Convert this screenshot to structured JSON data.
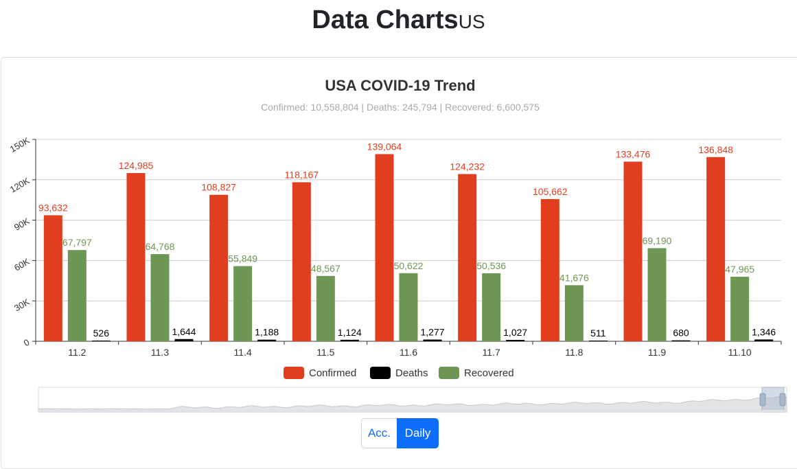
{
  "header": {
    "title": "Data Charts",
    "subtitle": "US"
  },
  "toggle": {
    "acc_label": "Acc.",
    "daily_label": "Daily",
    "active": "Daily"
  },
  "colors": {
    "confirmed": "#e03e1f",
    "deaths": "#000000",
    "recovered": "#6e9654",
    "grid": "#cccccc",
    "axis": "#333333",
    "subtitle": "#aaaaaa"
  },
  "chart_data": {
    "type": "bar",
    "title": "USA COVID-19 Trend",
    "subtitle": "Confirmed: 10,558,804 | Deaths: 245,794 | Recovered: 6,600,575",
    "categories": [
      "11.2",
      "11.3",
      "11.4",
      "11.5",
      "11.6",
      "11.7",
      "11.8",
      "11.9",
      "11.10"
    ],
    "series": [
      {
        "name": "Confirmed",
        "color": "#e03e1f",
        "values": [
          93632,
          124985,
          108827,
          118167,
          139064,
          124232,
          105662,
          133476,
          136848
        ],
        "labels": [
          "93,632",
          "124,985",
          "108,827",
          "118,167",
          "139,064",
          "124,232",
          "105,662",
          "133,476",
          "136,848"
        ]
      },
      {
        "name": "Deaths",
        "color": "#000000",
        "values": [
          526,
          1644,
          1188,
          1124,
          1277,
          1027,
          511,
          680,
          1346
        ],
        "labels": [
          "526",
          "1,644",
          "1,188",
          "1,124",
          "1,277",
          "1,027",
          "511",
          "680",
          "1,346"
        ]
      },
      {
        "name": "Recovered",
        "color": "#6e9654",
        "values": [
          67797,
          64768,
          55849,
          48567,
          50622,
          50536,
          41676,
          69190,
          47965
        ],
        "labels": [
          "67,797",
          "64,768",
          "55,849",
          "48,567",
          "50,622",
          "50,536",
          "41,676",
          "69,190",
          "47,965"
        ]
      }
    ],
    "legend_order": [
      "Confirmed",
      "Deaths",
      "Recovered"
    ],
    "yticks": [
      0,
      30000,
      60000,
      90000,
      120000,
      150000
    ],
    "ytick_labels": [
      "0",
      "30K",
      "60K",
      "90K",
      "120K",
      "150K"
    ],
    "ylim": [
      0,
      150000
    ],
    "grid": true,
    "legend": "bottom-center",
    "has_datazoom_slider": true
  }
}
